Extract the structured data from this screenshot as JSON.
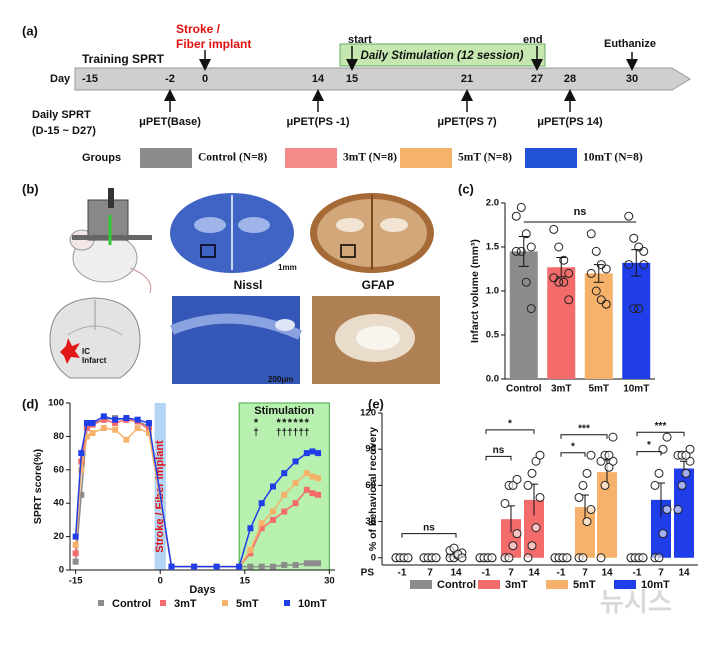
{
  "figure": {
    "panel_labels": [
      "(a)",
      "(b)",
      "(c)",
      "(d)",
      "(e)"
    ],
    "timeline": {
      "axis_label": "Day",
      "days": [
        -15,
        -2,
        0,
        14,
        15,
        21,
        27,
        28,
        30
      ],
      "training": "Training SPRT",
      "stroke": [
        "Stroke /",
        "Fiber implant"
      ],
      "start": "start",
      "end": "end",
      "stimulation": "Daily Stimulation (12 session)",
      "euthanize": "Euthanize",
      "pet": [
        "μPET(Base)",
        "μPET(PS -1)",
        "μPET(PS 7)",
        "μPET(PS 14)"
      ],
      "daily_sprt": [
        "Daily SPRT",
        "(D-15 ~ D27)"
      ],
      "groups_label": "Groups",
      "groups": [
        {
          "name": "Control (N=8)",
          "color": "#8c8c8c"
        },
        {
          "name": "3mT (N=8)",
          "color": "#f58a8a"
        },
        {
          "name": "5mT (N=8)",
          "color": "#f6b26b"
        },
        {
          "name": "10mT (N=8)",
          "color": "#2152d6"
        }
      ]
    },
    "images": {
      "nissl": "Nissl",
      "gfap": "GFAP",
      "scale1": "1mm",
      "scale2": "200μm",
      "ic": "IC",
      "infarct": "Infarct"
    },
    "watermark": "뉴시스"
  },
  "chart_data": [
    {
      "type": "bar",
      "ylabel": "Infarct volume (mm³)",
      "categories": [
        "Control",
        "3mT",
        "5mT",
        "10mT"
      ],
      "values": [
        1.45,
        1.27,
        1.2,
        1.32
      ],
      "errors": [
        0.17,
        0.11,
        0.1,
        0.15
      ],
      "colors": [
        "#8c8c8c",
        "#f46b6b",
        "#f6b26b",
        "#1f3de8"
      ],
      "points": [
        [
          1.85,
          1.95,
          1.65,
          1.5,
          1.45,
          1.45,
          1.1,
          0.8
        ],
        [
          1.7,
          1.5,
          1.35,
          1.2,
          1.15,
          1.1,
          1.1,
          0.9
        ],
        [
          1.65,
          1.45,
          1.3,
          1.25,
          1.2,
          1.0,
          0.9,
          0.85
        ],
        [
          1.85,
          1.6,
          1.5,
          1.3,
          1.3,
          0.8,
          0.8,
          1.45
        ]
      ],
      "ylim": [
        0,
        2.0
      ],
      "yticks": [
        {
          "value": 0,
          "label": "0.0"
        },
        0.5,
        {
          "value": 1,
          "label": "1.0"
        },
        1.5,
        {
          "value": 2,
          "label": "2.0"
        }
      ],
      "annotation": "ns"
    },
    {
      "type": "line",
      "xlabel": "Days",
      "ylabel": "SPRT score(%)",
      "x": [
        -15,
        -14,
        -13,
        -12,
        -10,
        -8,
        -6,
        -4,
        -2,
        2,
        6,
        10,
        14,
        16,
        18,
        20,
        22,
        24,
        26,
        27,
        28
      ],
      "series": [
        {
          "name": "Control",
          "color": "#8c8c8c",
          "values": [
            5,
            45,
            85,
            88,
            90,
            91,
            90,
            89,
            86,
            2,
            2,
            2,
            2,
            2,
            2,
            2,
            3,
            3,
            4,
            4,
            4
          ]
        },
        {
          "name": "3mT",
          "color": "#f46b6b",
          "values": [
            10,
            65,
            85,
            87,
            90,
            88,
            90,
            89,
            84,
            2,
            2,
            2,
            2,
            10,
            25,
            30,
            35,
            40,
            48,
            46,
            45
          ]
        },
        {
          "name": "5mT",
          "color": "#f6b26b",
          "values": [
            15,
            60,
            80,
            82,
            85,
            84,
            78,
            85,
            82,
            2,
            2,
            2,
            2,
            12,
            28,
            35,
            45,
            52,
            58,
            56,
            55
          ]
        },
        {
          "name": "10mT",
          "color": "#1f3de8",
          "values": [
            20,
            70,
            88,
            88,
            92,
            90,
            91,
            90,
            88,
            2,
            2,
            2,
            2,
            25,
            40,
            50,
            58,
            65,
            70,
            71,
            70
          ]
        }
      ],
      "xlim": [
        -16,
        31
      ],
      "ylim": [
        0,
        100
      ],
      "xticks": [
        -15,
        0,
        15,
        30
      ],
      "yticks": [
        0,
        20,
        40,
        60,
        80,
        100
      ],
      "spans": [
        {
          "xlim": [
            -1,
            1
          ],
          "color": "#b4d4f4",
          "label": "Stroke / Fiber implant"
        },
        {
          "xlim": [
            14,
            30
          ],
          "color": "#b8f0b0",
          "label": "Stimulation"
        }
      ],
      "star": "*",
      "dagger": "†",
      "sig_x": [
        17,
        21,
        22,
        23,
        24,
        25,
        26
      ]
    },
    {
      "type": "grouped_bar",
      "ylabel": "% of behavioral recovery",
      "x_prefix": "PS",
      "timepoints": [
        -1,
        7,
        14
      ],
      "series": [
        {
          "name": "Control",
          "color": "#8c8c8c",
          "values": [
            0,
            0,
            3
          ],
          "errors": [
            0,
            0,
            1.5
          ],
          "points": [
            [
              0,
              0,
              0,
              0,
              0,
              0,
              0,
              0
            ],
            [
              0,
              0,
              0,
              0,
              0,
              0,
              0,
              0
            ],
            [
              0,
              0,
              2,
              4,
              6,
              8,
              3,
              0
            ]
          ]
        },
        {
          "name": "3mT",
          "color": "#f46b6b",
          "values": [
            0,
            32,
            48
          ],
          "errors": [
            0,
            11,
            13
          ],
          "points": [
            [
              0,
              0,
              0,
              0,
              0,
              0,
              0,
              0
            ],
            [
              0,
              0,
              10,
              20,
              45,
              60,
              60,
              65
            ],
            [
              0,
              10,
              25,
              50,
              60,
              70,
              80,
              85
            ]
          ]
        },
        {
          "name": "5mT",
          "color": "#f6b26b",
          "values": [
            0,
            42,
            71
          ],
          "errors": [
            0,
            10,
            10
          ],
          "points": [
            [
              0,
              0,
              0,
              0,
              0,
              0,
              0,
              0
            ],
            [
              0,
              0,
              30,
              40,
              50,
              60,
              70,
              85
            ],
            [
              0,
              60,
              75,
              80,
              80,
              85,
              85,
              100
            ]
          ]
        },
        {
          "name": "10mT",
          "color": "#1f3de8",
          "values": [
            0,
            48,
            74
          ],
          "errors": [
            0,
            14,
            6
          ],
          "points": [
            [
              0,
              0,
              0,
              0,
              0,
              0,
              0,
              0
            ],
            [
              0,
              0,
              20,
              40,
              60,
              70,
              90,
              100
            ],
            [
              40,
              60,
              70,
              80,
              85,
              85,
              85,
              90
            ]
          ]
        }
      ],
      "ylim": [
        -6,
        120
      ],
      "yticks": [
        0,
        30,
        60,
        90,
        120
      ],
      "annotations": [
        {
          "text": "ns",
          "series": 0,
          "from": 0,
          "to": 2,
          "y": 20
        },
        {
          "text": "ns",
          "series": 1,
          "from": 0,
          "to": 1,
          "y": 84
        },
        {
          "text": "*",
          "series": 1,
          "from": 0,
          "to": 2,
          "y": 106
        },
        {
          "text": "*",
          "series": 2,
          "from": 0,
          "to": 1,
          "y": 87
        },
        {
          "text": "***",
          "series": 2,
          "from": 0,
          "to": 2,
          "y": 102
        },
        {
          "text": "*",
          "series": 3,
          "from": 0,
          "to": 1,
          "y": 88
        },
        {
          "text": "***",
          "series": 3,
          "from": 0,
          "to": 2,
          "y": 104
        }
      ]
    }
  ]
}
